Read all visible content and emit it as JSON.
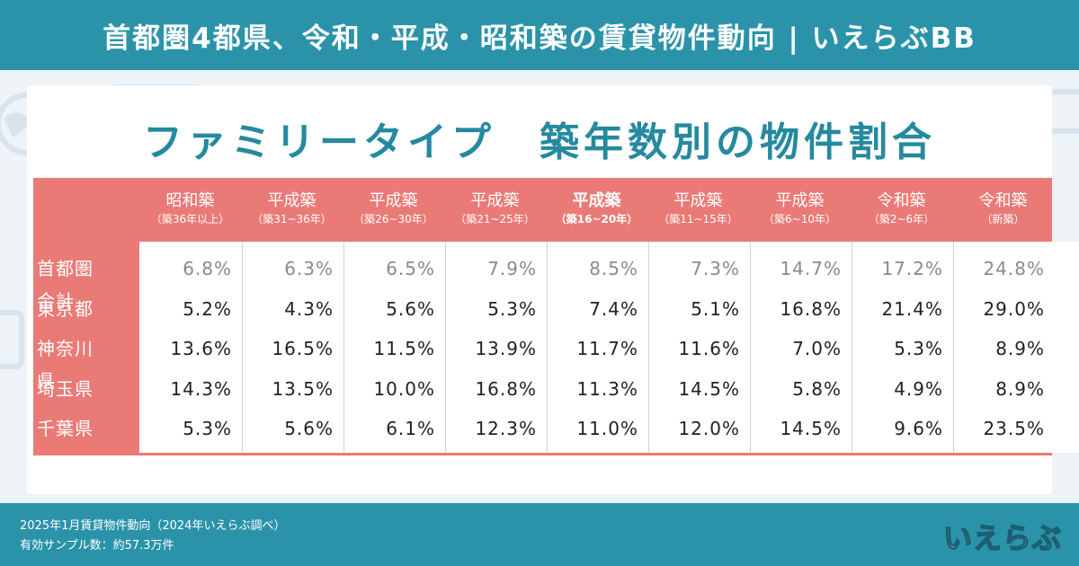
{
  "header": {
    "title": "首都圏4都県、令和・平成・昭和築の賃貸物件動向 | いえらぶBB"
  },
  "chart_data": {
    "type": "table",
    "title": "ファミリータイプ　築年数別の物件割合",
    "columns": [
      {
        "label": "昭和築",
        "sub": "（築36年以上）",
        "bold": false
      },
      {
        "label": "平成築",
        "sub": "（築31~36年）",
        "bold": false
      },
      {
        "label": "平成築",
        "sub": "（築26~30年）",
        "bold": false
      },
      {
        "label": "平成築",
        "sub": "（築21~25年）",
        "bold": false
      },
      {
        "label": "平成築",
        "sub": "（築16~20年）",
        "bold": true
      },
      {
        "label": "平成築",
        "sub": "（築11~15年）",
        "bold": false
      },
      {
        "label": "平成築",
        "sub": "（築6~10年）",
        "bold": false
      },
      {
        "label": "令和築",
        "sub": "（築2~6年）",
        "bold": false
      },
      {
        "label": "令和築",
        "sub": "（新築）",
        "bold": false
      }
    ],
    "rows": [
      {
        "label": "首都圏合計",
        "values": [
          "6.8%",
          "6.3%",
          "6.5%",
          "7.9%",
          "8.5%",
          "7.3%",
          "14.7%",
          "17.2%",
          "24.8%"
        ],
        "muted": true
      },
      {
        "label": "東京都",
        "values": [
          "5.2%",
          "4.3%",
          "5.6%",
          "5.3%",
          "7.4%",
          "5.1%",
          "16.8%",
          "21.4%",
          "29.0%"
        ],
        "muted": false
      },
      {
        "label": "神奈川県",
        "values": [
          "13.6%",
          "16.5%",
          "11.5%",
          "13.9%",
          "11.7%",
          "11.6%",
          "7.0%",
          "5.3%",
          "8.9%"
        ],
        "muted": false
      },
      {
        "label": "埼玉県",
        "values": [
          "14.3%",
          "13.5%",
          "10.0%",
          "16.8%",
          "11.3%",
          "14.5%",
          "5.8%",
          "4.9%",
          "8.9%"
        ],
        "muted": false
      },
      {
        "label": "千葉県",
        "values": [
          "5.3%",
          "5.6%",
          "6.1%",
          "12.3%",
          "11.0%",
          "12.0%",
          "14.5%",
          "9.6%",
          "23.5%"
        ],
        "muted": false
      }
    ]
  },
  "footer": {
    "source": "2025年1月賃貸物件動向（2024年いえらぶ調べ）",
    "sample": "有効サンプル数：約57.3万件",
    "logo_text": "いえらぶ"
  },
  "colors": {
    "brand": "#2a93aa",
    "title": "#2589a0",
    "table_header": "#ea7a76",
    "muted_value": "#8a8a8a",
    "background": "#eef3f8"
  },
  "icons": [
    "globe-icon",
    "browser-window-icon",
    "wrench-icon",
    "chat-bubble-icon",
    "document-icon",
    "play-icon"
  ]
}
